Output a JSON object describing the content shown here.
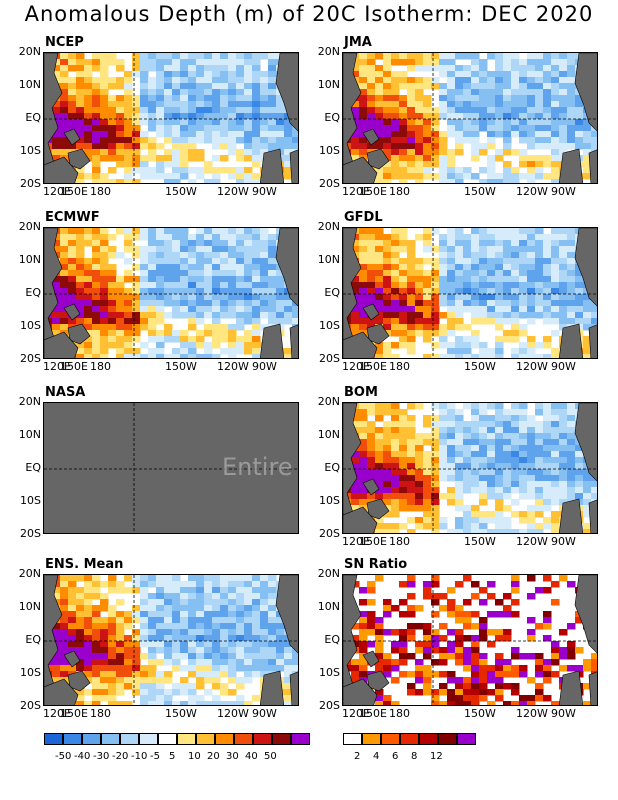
{
  "title": "Anomalous Depth (m) of 20C Isotherm: DEC 2020",
  "panels": [
    {
      "name": "NCEP",
      "kind": "anom"
    },
    {
      "name": "JMA",
      "kind": "anom"
    },
    {
      "name": "ECMWF",
      "kind": "anom"
    },
    {
      "name": "GFDL",
      "kind": "anom"
    },
    {
      "name": "NASA",
      "kind": "missing",
      "missing_text": "Entire Gr"
    },
    {
      "name": "BOM",
      "kind": "anom"
    },
    {
      "name": "ENS. Mean",
      "kind": "anom"
    },
    {
      "name": "SN Ratio",
      "kind": "sn"
    }
  ],
  "lat_labels": [
    "20N",
    "10N",
    "EQ",
    "10S",
    "20S"
  ],
  "lon_labels": [
    "120E",
    "150E",
    "180",
    "150W",
    "120W",
    "90W"
  ],
  "legend_anom": {
    "labels": [
      "-50",
      "-40",
      "-30",
      "-20",
      "-10",
      "-5",
      "5",
      "10",
      "20",
      "30",
      "40",
      "50"
    ],
    "colors": [
      "#1a66d9",
      "#3a87e6",
      "#5fa3ed",
      "#86bff2",
      "#add6f7",
      "#d6ecfb",
      "#ffffff",
      "#ffe680",
      "#ffc033",
      "#ff8c00",
      "#f04e0a",
      "#cc1414",
      "#8c0a0a",
      "#9900cc"
    ]
  },
  "legend_sn": {
    "labels": [
      "2",
      "4",
      "6",
      "8",
      "12"
    ],
    "colors": [
      "#ffffff",
      "#ff9900",
      "#ff5a00",
      "#e62800",
      "#b40000",
      "#800000",
      "#9900cc"
    ]
  }
}
